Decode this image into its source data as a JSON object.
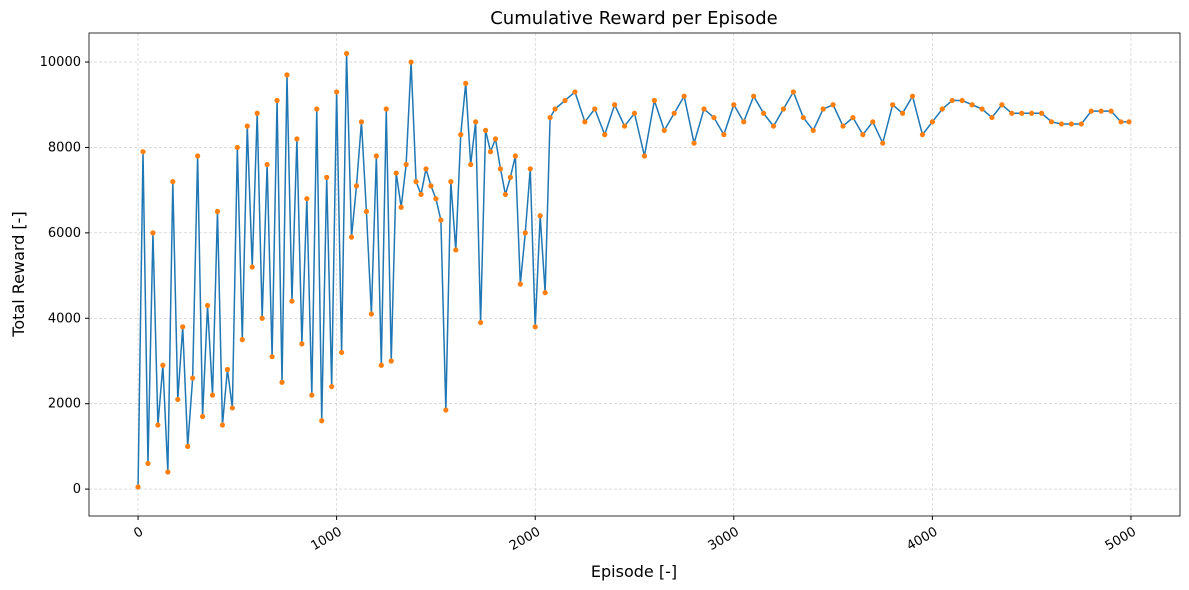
{
  "chart_data": {
    "type": "line",
    "title": "Cumulative Reward per Episode",
    "x_label": "Episode [-]",
    "y_label": "Total Reward [-]",
    "x": [
      0,
      25,
      50,
      75,
      100,
      125,
      150,
      175,
      200,
      225,
      250,
      275,
      300,
      325,
      350,
      375,
      400,
      425,
      450,
      475,
      500,
      525,
      550,
      575,
      600,
      625,
      650,
      675,
      700,
      725,
      750,
      775,
      800,
      825,
      850,
      875,
      900,
      925,
      950,
      975,
      1000,
      1025,
      1050,
      1075,
      1100,
      1125,
      1150,
      1175,
      1200,
      1225,
      1250,
      1275,
      1300,
      1325,
      1350,
      1375,
      1400,
      1425,
      1450,
      1475,
      1500,
      1525,
      1550,
      1575,
      1600,
      1625,
      1650,
      1675,
      1700,
      1725,
      1750,
      1775,
      1800,
      1825,
      1850,
      1875,
      1900,
      1925,
      1950,
      1975,
      2000,
      2025,
      2050,
      2075,
      2100,
      2150,
      2200,
      2250,
      2300,
      2350,
      2400,
      2450,
      2500,
      2550,
      2600,
      2650,
      2700,
      2750,
      2800,
      2850,
      2900,
      2950,
      3000,
      3050,
      3100,
      3150,
      3200,
      3250,
      3300,
      3350,
      3400,
      3450,
      3500,
      3550,
      3600,
      3650,
      3700,
      3750,
      3800,
      3850,
      3900,
      3950,
      4000,
      4050,
      4100,
      4150,
      4200,
      4250,
      4300,
      4350,
      4400,
      4450,
      4500,
      4550,
      4600,
      4650,
      4700,
      4750,
      4800,
      4850,
      4900,
      4950,
      4990
    ],
    "values": [
      50,
      7900,
      600,
      6000,
      1500,
      2900,
      400,
      7200,
      2100,
      3800,
      1000,
      2600,
      7800,
      1700,
      4300,
      2200,
      6500,
      1500,
      2800,
      1900,
      8000,
      3500,
      8500,
      5200,
      8800,
      4000,
      7600,
      3100,
      9100,
      2500,
      9700,
      4400,
      8200,
      3400,
      6800,
      2200,
      8900,
      1600,
      7300,
      2400,
      9300,
      3200,
      10200,
      5900,
      7100,
      8600,
      6500,
      4100,
      7800,
      2900,
      8900,
      3000,
      7400,
      6600,
      7600,
      10000,
      7200,
      6900,
      7500,
      7100,
      6800,
      6300,
      1850,
      7200,
      5600,
      8300,
      9500,
      7600,
      8600,
      3900,
      8400,
      7900,
      8200,
      7500,
      6900,
      7300,
      7800,
      4800,
      6000,
      7500,
      3800,
      6400,
      4600,
      8700,
      8900,
      9100,
      9300,
      8600,
      8900,
      8300,
      9000,
      8500,
      8800,
      7800,
      9100,
      8400,
      8800,
      9200,
      8100,
      8900,
      8700,
      8300,
      9000,
      8600,
      9200,
      8800,
      8500,
      8900,
      9300,
      8700,
      8400,
      8900,
      9000,
      8500,
      8700,
      8300,
      8600,
      8100,
      9000,
      8800,
      9200,
      8300,
      8600,
      8900,
      9100,
      9100,
      9000,
      8900,
      8700,
      9000,
      8800,
      8800,
      8800,
      8800,
      8600,
      8550,
      8550,
      8550,
      8850,
      8850,
      8850,
      8600,
      8600
    ],
    "line_color": "#1f77b4",
    "marker_color": "#ff7f0e",
    "xlim": [
      -247,
      5247
    ],
    "ylim": [
      -630,
      10680
    ],
    "xticks": [
      0,
      1000,
      2000,
      3000,
      4000,
      5000
    ],
    "yticks": [
      0,
      2000,
      4000,
      6000,
      8000,
      10000
    ],
    "grid": true
  }
}
